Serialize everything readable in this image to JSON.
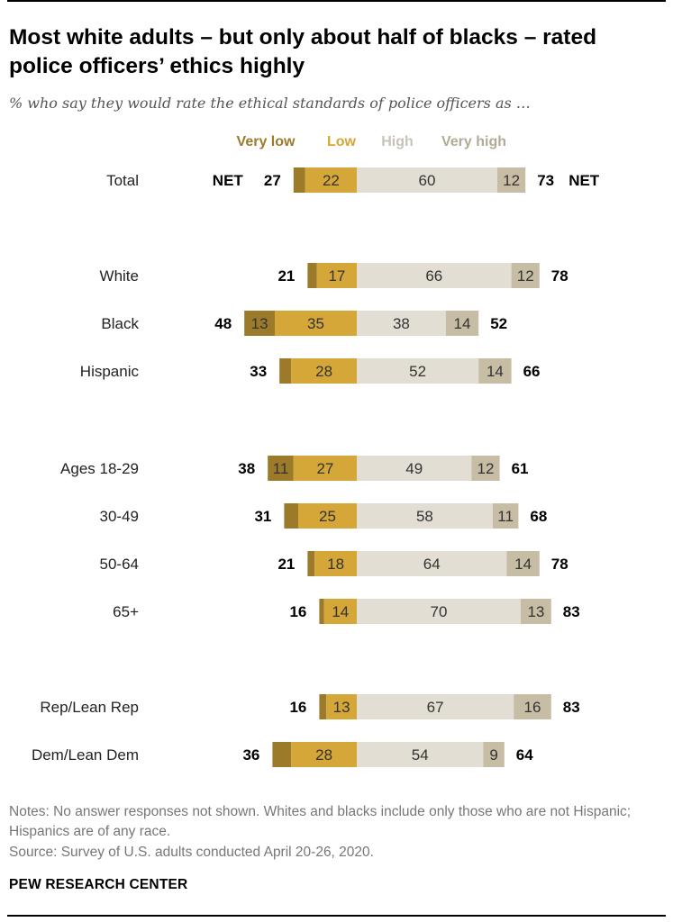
{
  "title": "Most white adults – but only about half of blacks – rated police officers’ ethics highly",
  "subtitle": "% who say they would rate the ethical standards of police officers as …",
  "notes": "Notes: No answer responses not shown. Whites and blacks include only those who are not Hispanic; Hispanics are of any race.",
  "source": "Source: Survey of U.S. adults conducted April 20-26, 2020.",
  "org": "PEW RESEARCH CENTER",
  "colors": {
    "very_low": "#9b7a2a",
    "low": "#d5a638",
    "high": "#e2ded3",
    "very_high": "#c7bca4",
    "legend_high": "#c8c3b8",
    "legend_very_high": "#b3aa96"
  },
  "chart_data": {
    "type": "bar",
    "orientation": "horizontal",
    "stacking": "diverging",
    "legend": [
      "Very low",
      "Low",
      "High",
      "Very high"
    ],
    "net_label": "NET",
    "categories": [
      "Total",
      "White",
      "Black",
      "Hispanic",
      "Ages 18-29",
      "30-49",
      "50-64",
      "65+",
      "Rep/Lean Rep",
      "Dem/Lean Dem"
    ],
    "series": [
      {
        "name": "Very low",
        "values": [
          5,
          4,
          13,
          5,
          11,
          6,
          3,
          2,
          3,
          8
        ],
        "labels": [
          "",
          "",
          "13",
          "",
          "11",
          "",
          "",
          "",
          "",
          ""
        ]
      },
      {
        "name": "Low",
        "values": [
          22,
          17,
          35,
          28,
          27,
          25,
          18,
          14,
          13,
          28
        ],
        "labels": [
          "22",
          "17",
          "35",
          "28",
          "27",
          "25",
          "18",
          "14",
          "13",
          "28"
        ]
      },
      {
        "name": "High",
        "values": [
          60,
          66,
          38,
          52,
          49,
          58,
          64,
          70,
          67,
          54
        ],
        "labels": [
          "60",
          "66",
          "38",
          "52",
          "49",
          "58",
          "64",
          "70",
          "67",
          "54"
        ]
      },
      {
        "name": "Very high",
        "values": [
          12,
          12,
          14,
          14,
          12,
          11,
          14,
          13,
          16,
          9
        ],
        "labels": [
          "12",
          "12",
          "14",
          "14",
          "12",
          "11",
          "14",
          "13",
          "16",
          "9"
        ]
      }
    ],
    "net_low": [
      27,
      21,
      48,
      33,
      38,
      31,
      21,
      16,
      16,
      36
    ],
    "net_high": [
      73,
      78,
      52,
      66,
      61,
      68,
      78,
      83,
      83,
      64
    ]
  }
}
